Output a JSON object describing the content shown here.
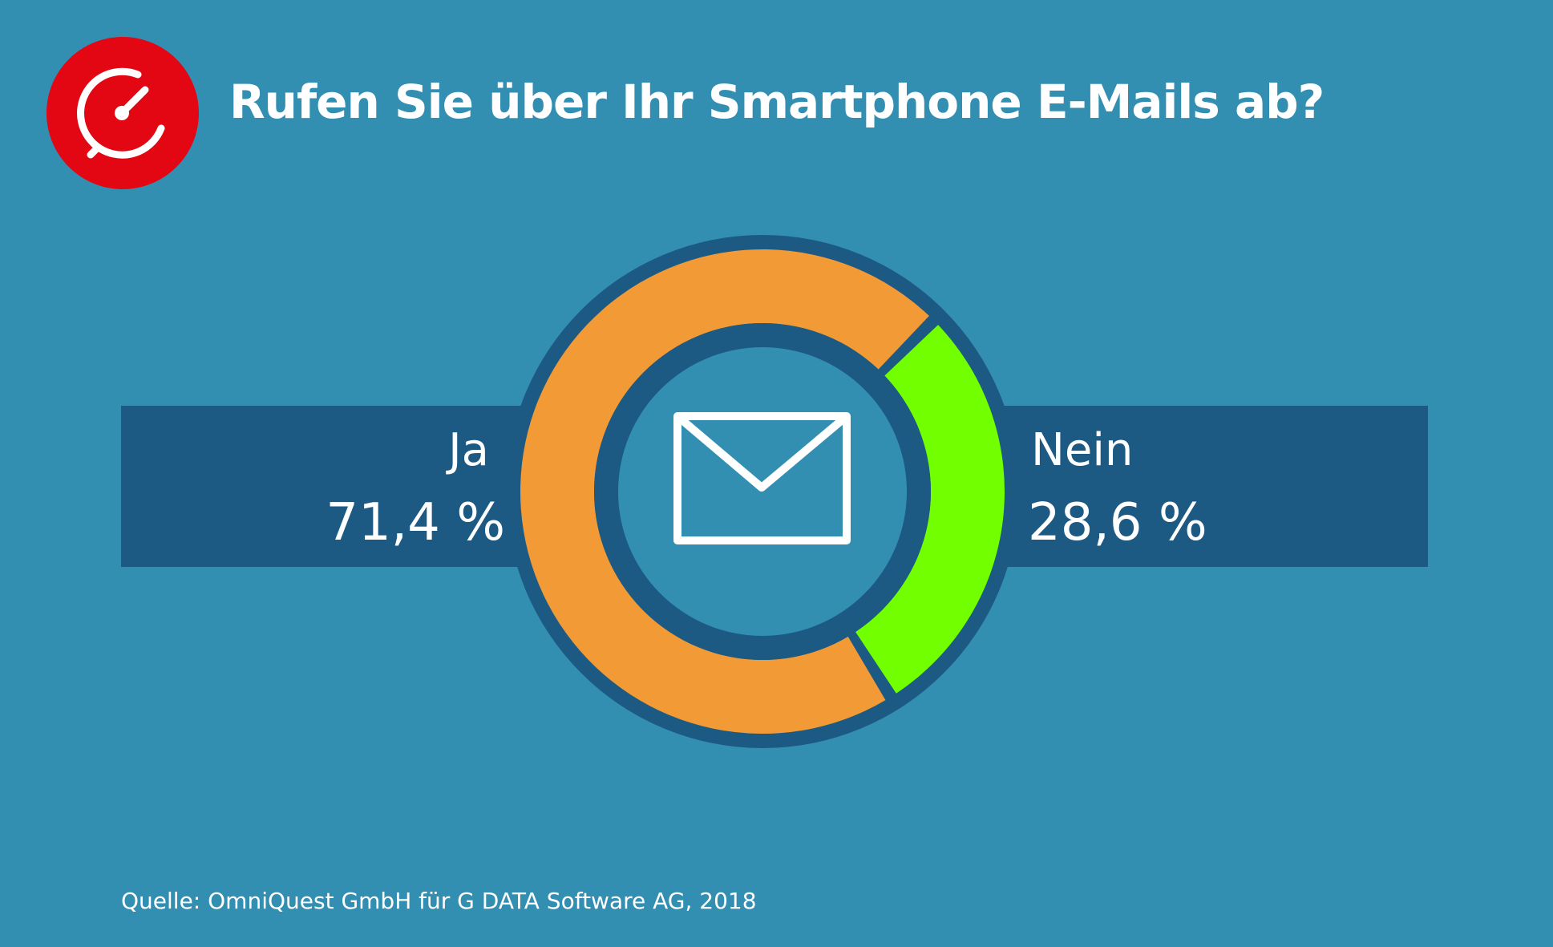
{
  "title": "Rufen Sie über Ihr Smartphone E-Mails ab?",
  "source": "Quelle: OmniQuest GmbH für G DATA Software AG, 2018",
  "logo_icon": "stopwatch-icon",
  "center_icon": "envelope-icon",
  "colors": {
    "background": "#338fb2",
    "band": "#1c5a84",
    "logo": "#e30613",
    "ja": "#f29a36",
    "nein": "#72ff00"
  },
  "chart_data": {
    "type": "pie",
    "title": "Rufen Sie über Ihr Smartphone E-Mails ab?",
    "series": [
      {
        "values": [
          71.4,
          28.6
        ]
      }
    ],
    "categories": [
      "Ja",
      "Nein"
    ],
    "values": [
      71.4,
      28.6
    ],
    "value_labels": [
      "71,4 %",
      "28,6 %"
    ],
    "unit": "%",
    "donut": true
  }
}
